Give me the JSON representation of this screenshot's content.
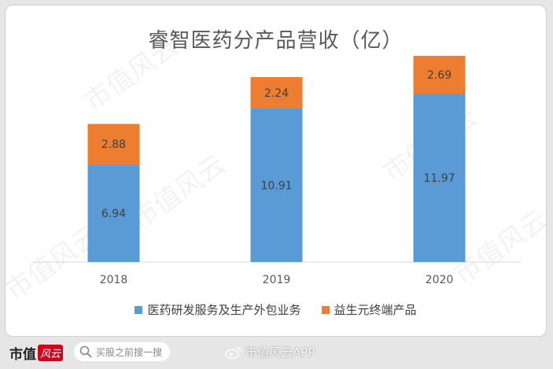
{
  "chart_data": {
    "type": "bar",
    "stacked": true,
    "title": "睿智医药分产品营收（亿）",
    "categories": [
      "2018",
      "2019",
      "2020"
    ],
    "series": [
      {
        "name": "医药研发服务及生产外包业务",
        "color": "#5b9bd5",
        "values": [
          6.94,
          10.91,
          11.97
        ]
      },
      {
        "name": "益生元终端产品",
        "color": "#ed7d31",
        "values": [
          2.88,
          2.24,
          2.69
        ]
      }
    ],
    "ylim": [
      0,
      16
    ],
    "data_labels": true,
    "grid": false,
    "legend_position": "bottom"
  },
  "watermark": "市值风云",
  "footer": {
    "brand": "市值",
    "brand_mark": "风云",
    "search_placeholder": "买股之前搜一搜",
    "app_tag": "市值风云APP"
  },
  "colors": {
    "label_text": "#404040",
    "axis": "#d9d9d9"
  }
}
